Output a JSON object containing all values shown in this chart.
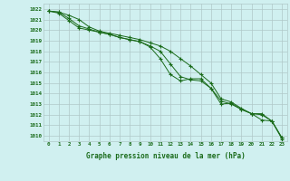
{
  "x": [
    0,
    1,
    2,
    3,
    4,
    5,
    6,
    7,
    8,
    9,
    10,
    11,
    12,
    13,
    14,
    15,
    16,
    17,
    18,
    19,
    20,
    21,
    22,
    23
  ],
  "line1": [
    1021.8,
    1021.7,
    1021.4,
    1021.0,
    1020.3,
    1019.9,
    1019.7,
    1019.5,
    1019.3,
    1019.1,
    1018.8,
    1018.5,
    1018.0,
    1017.3,
    1016.6,
    1015.8,
    1015.0,
    1013.5,
    1013.2,
    1012.6,
    1012.1,
    1012.1,
    1011.4,
    1009.8
  ],
  "line2": [
    1021.8,
    1021.7,
    1021.1,
    1020.4,
    1020.1,
    1019.8,
    1019.6,
    1019.3,
    1019.1,
    1018.9,
    1018.5,
    1018.0,
    1016.8,
    1015.6,
    1015.3,
    1015.2,
    1014.5,
    1013.3,
    1013.0,
    1012.5,
    1012.1,
    1012.0,
    1011.4,
    1009.8
  ],
  "line3": [
    1021.8,
    1021.6,
    1020.9,
    1020.2,
    1020.0,
    1019.8,
    1019.6,
    1019.3,
    1019.1,
    1018.9,
    1018.4,
    1017.3,
    1015.8,
    1015.2,
    1015.4,
    1015.4,
    1014.5,
    1013.0,
    1013.1,
    1012.5,
    1012.1,
    1011.5,
    1011.4,
    1009.7
  ],
  "bg_color": "#d0f0f0",
  "grid_color": "#b0c8c8",
  "line_color": "#1a6b1a",
  "xlabel": "Graphe pression niveau de la mer (hPa)",
  "ylim_min": 1009.5,
  "ylim_max": 1022.5,
  "xlim_min": -0.5,
  "xlim_max": 23.5,
  "ytick_min": 1010,
  "ytick_max": 1022,
  "xticks": [
    0,
    1,
    2,
    3,
    4,
    5,
    6,
    7,
    8,
    9,
    10,
    11,
    12,
    13,
    14,
    15,
    16,
    17,
    18,
    19,
    20,
    21,
    22,
    23
  ],
  "xlabel_fontsize": 5.5,
  "tick_fontsize": 4.2,
  "lw": 0.7,
  "marker_size": 2.5
}
